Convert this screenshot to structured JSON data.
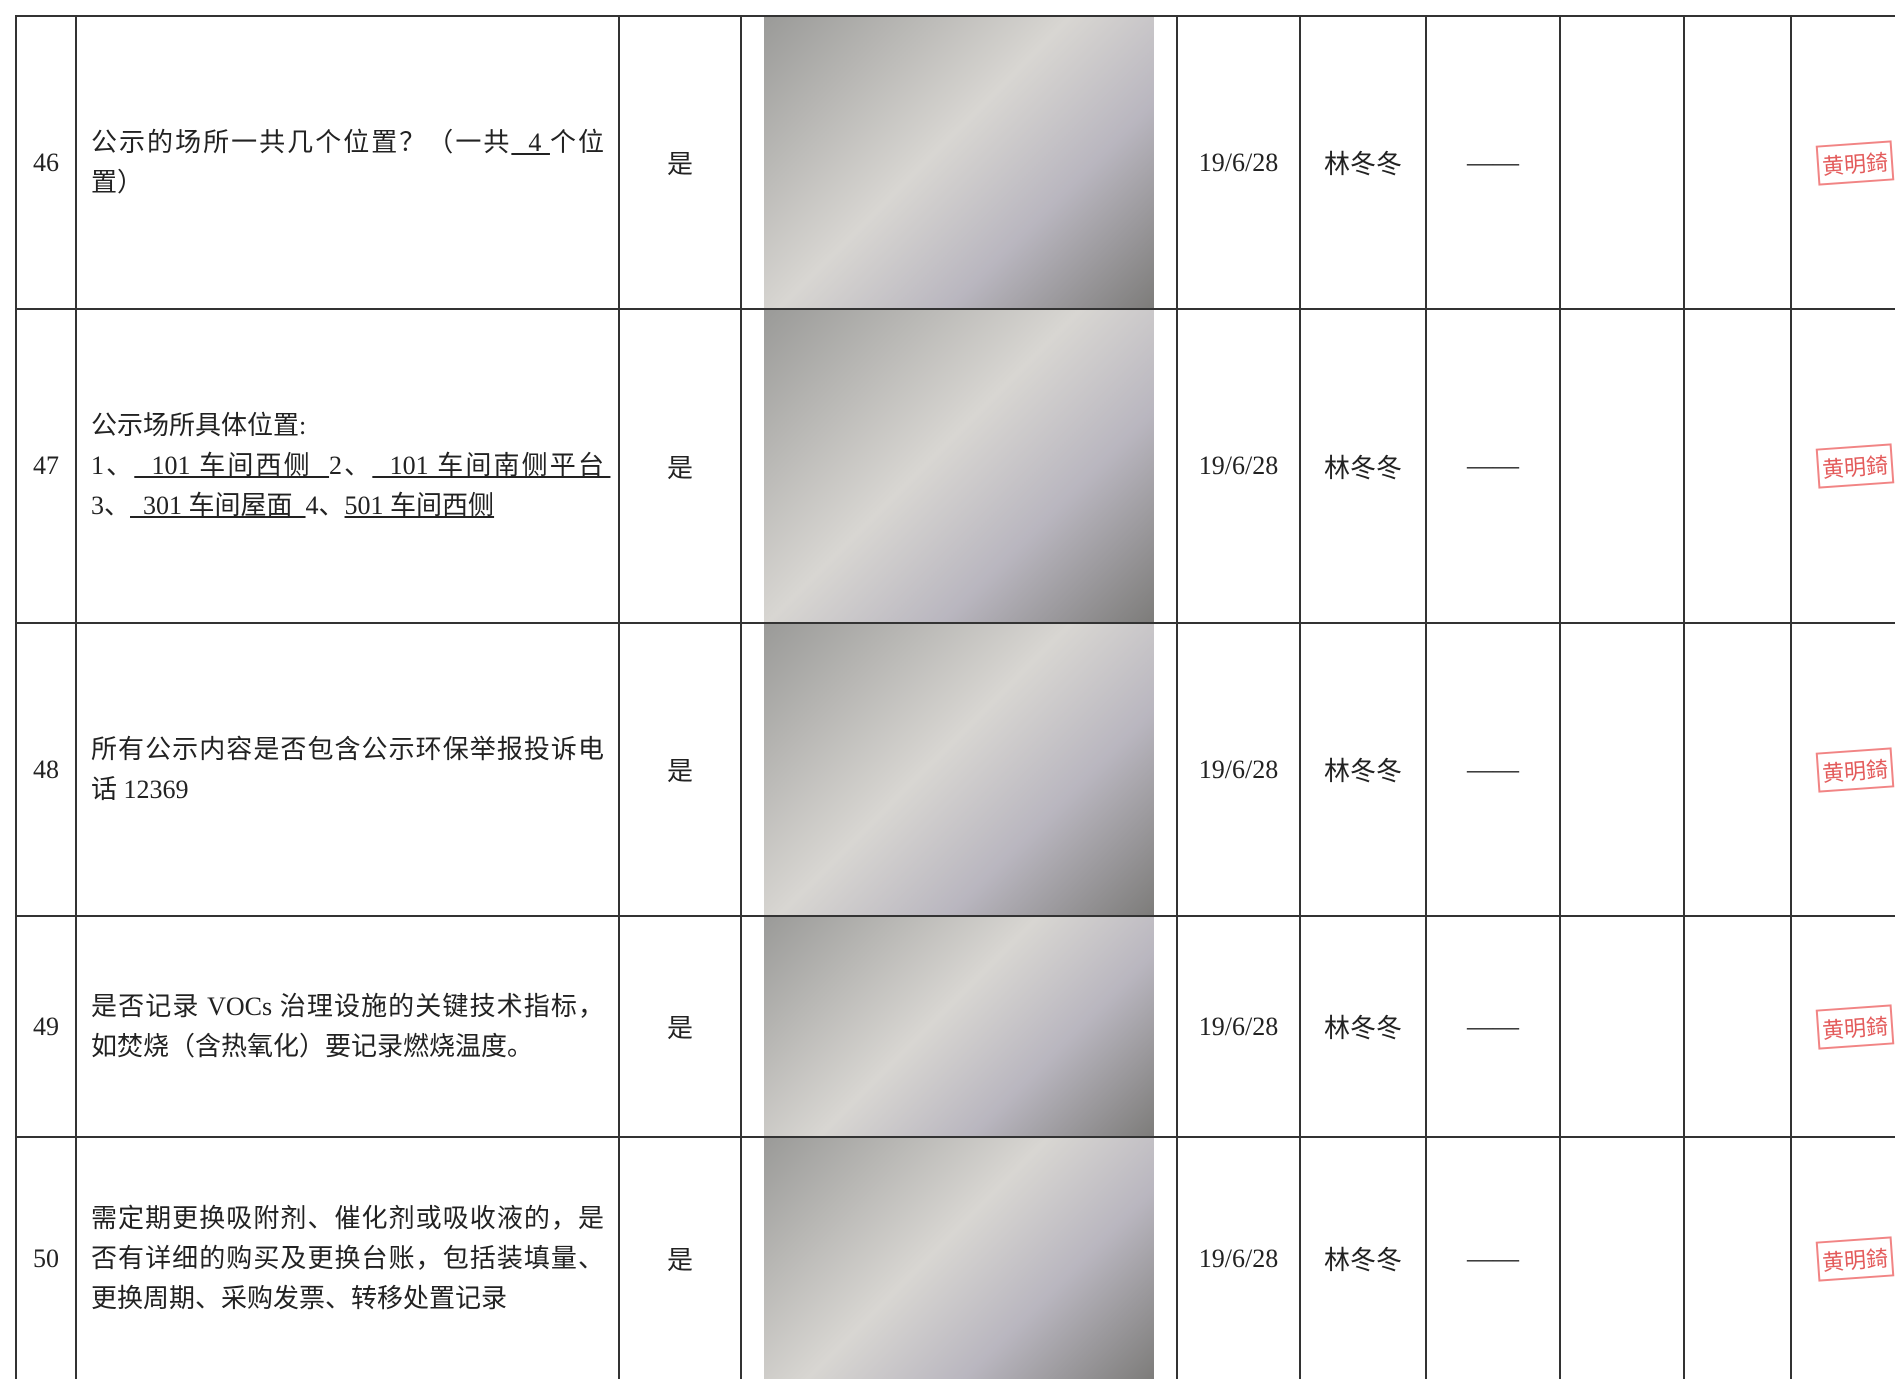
{
  "table": {
    "rows": [
      {
        "no": "46",
        "item": [
          {
            "text": "公示的场所一共几个位置？（一共",
            "underline": false
          },
          {
            "text": "  4 ",
            "underline": true
          },
          {
            "text": "个位置）",
            "underline": false
          }
        ],
        "answer": "是",
        "date": "19/6/28",
        "person": "林冬冬",
        "note": "——",
        "stamp": "黄明錡"
      },
      {
        "no": "47",
        "item": [
          {
            "text": "公示场所具体位置:\n1、",
            "underline": false
          },
          {
            "text": "  101 车间西侧  ",
            "underline": true
          },
          {
            "text": "2、",
            "underline": false
          },
          {
            "text": "  101 车间南侧平台 ",
            "underline": true
          },
          {
            "text": "3、",
            "underline": false
          },
          {
            "text": "  301 车间屋面  ",
            "underline": true
          },
          {
            "text": "4、",
            "underline": false
          },
          {
            "text": "501 车间西侧",
            "underline": true
          }
        ],
        "answer": "是",
        "date": "19/6/28",
        "person": "林冬冬",
        "note": "——",
        "stamp": "黄明錡"
      },
      {
        "no": "48",
        "item": [
          {
            "text": "所有公示内容是否包含公示环保举报投诉电话 12369",
            "underline": false
          }
        ],
        "answer": "是",
        "date": "19/6/28",
        "person": "林冬冬",
        "note": "——",
        "stamp": "黄明錡"
      },
      {
        "no": "49",
        "item": [
          {
            "text": "是否记录 VOCs 治理设施的关键技术指标，如焚烧（含热氧化）要记录燃烧温度。",
            "underline": false
          }
        ],
        "answer": "是",
        "date": "19/6/28",
        "person": "林冬冬",
        "note": "——",
        "stamp": "黄明錡"
      },
      {
        "no": "50",
        "item": [
          {
            "text": "需定期更换吸附剂、催化剂或吸收液的，是否有详细的购买及更换台账，包括装填量、更换周期、采购发票、转移处置记录",
            "underline": false
          }
        ],
        "answer": "是",
        "date": "19/6/28",
        "person": "林冬冬",
        "note": "——",
        "stamp": "黄明錡"
      }
    ]
  }
}
